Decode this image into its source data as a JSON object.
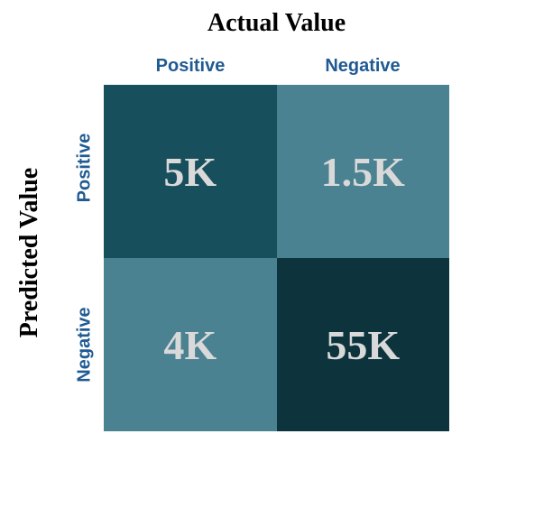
{
  "chart_data": {
    "type": "heatmap",
    "title": "Actual Value",
    "xlabel": "Actual Value",
    "ylabel": "Predicted Value",
    "columns": [
      "Positive",
      "Negative"
    ],
    "rows": [
      "Positive",
      "Negative"
    ],
    "cells": [
      [
        {
          "label": "5K",
          "value": 5000,
          "color": "#174f5c"
        },
        {
          "label": "1.5K",
          "value": 1500,
          "color": "#4a8291"
        }
      ],
      [
        {
          "label": "4K",
          "value": 4000,
          "color": "#4a8291"
        },
        {
          "label": "55K",
          "value": 55000,
          "color": "#0d343d"
        }
      ]
    ],
    "tick_label_color": "#1f5a91",
    "cell_text_color": "#d9d9d9"
  }
}
